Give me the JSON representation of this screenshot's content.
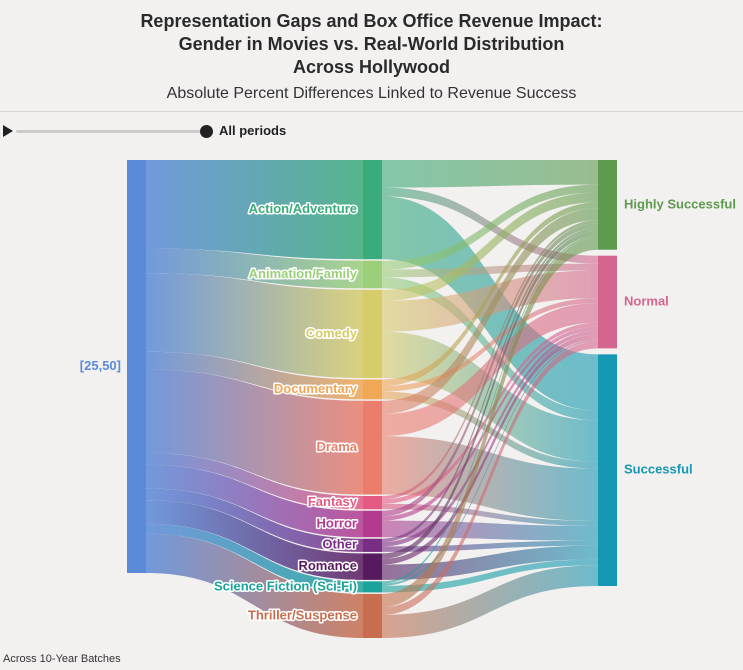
{
  "title_lines": [
    "Representation Gaps and Box Office Revenue Impact:",
    "Gender in Movies vs. Real-World Distribution",
    "Across Hollywood"
  ],
  "subtitle": "Absolute Percent Differences Linked to Revenue Success",
  "player": {
    "period_label": "All periods"
  },
  "footer": "Across 10-Year Batches",
  "chart_data": {
    "type": "sankey",
    "source_node": {
      "name": "[25,50]",
      "color": "#5b8ad8"
    },
    "genres": [
      {
        "name": "Action/Adventure",
        "value": 90,
        "color": "#3aab7b"
      },
      {
        "name": "Animation/Family",
        "value": 25,
        "color": "#9ccf7a"
      },
      {
        "name": "Comedy",
        "value": 80,
        "color": "#d6cc6a"
      },
      {
        "name": "Documentary",
        "value": 18,
        "color": "#f0a857"
      },
      {
        "name": "Drama",
        "value": 85,
        "color": "#eb7e6b"
      },
      {
        "name": "Fantasy",
        "value": 12,
        "color": "#e35a82"
      },
      {
        "name": "Horror",
        "value": 24,
        "color": "#b33a8f"
      },
      {
        "name": "Other",
        "value": 12,
        "color": "#7a2d84"
      },
      {
        "name": "Romance",
        "value": 24,
        "color": "#581a5f"
      },
      {
        "name": "Science Fiction (Sci-Fi)",
        "value": 10,
        "color": "#1aa39a"
      },
      {
        "name": "Thriller/Suspense",
        "value": 40,
        "color": "#c86e4e"
      }
    ],
    "outcomes": [
      {
        "name": "Highly Successful",
        "color": "#5d9b4f"
      },
      {
        "name": "Normal",
        "color": "#d3658f"
      },
      {
        "name": "Successful",
        "color": "#1598b4"
      }
    ],
    "flows": {
      "Action/Adventure": [
        25,
        8,
        57
      ],
      "Animation/Family": [
        8,
        7,
        10
      ],
      "Comedy": [
        10,
        28,
        42
      ],
      "Documentary": [
        6,
        5,
        7
      ],
      "Drama": [
        12,
        20,
        53
      ],
      "Fantasy": [
        3,
        4,
        5
      ],
      "Horror": [
        5,
        4,
        15
      ],
      "Other": [
        3,
        4,
        5
      ],
      "Romance": [
        5,
        5,
        14
      ],
      "Science Fiction (Sci-Fi)": [
        2,
        2,
        6
      ],
      "Thriller/Suspense": [
        12,
        7,
        21
      ]
    }
  }
}
